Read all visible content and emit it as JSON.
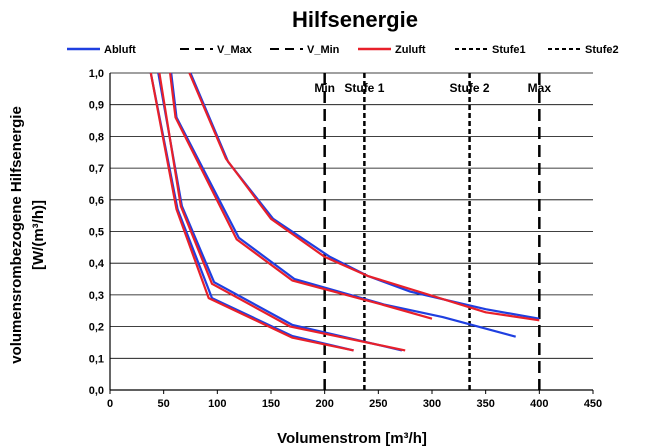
{
  "chart_data": {
    "type": "line",
    "title": "Hilfsenergie",
    "xlabel": "Volumenstrom [m³/h]",
    "ylabel": [
      "volumensrombezogene Hilfsenergie",
      "[W/(m³/h)]"
    ],
    "xlim": [
      0,
      450
    ],
    "ylim": [
      0,
      1.0
    ],
    "xticks": [
      "0",
      "50",
      "100",
      "150",
      "200",
      "250",
      "300",
      "350",
      "400",
      "450"
    ],
    "yticks": [
      "0,0",
      "0,1",
      "0,2",
      "0,3",
      "0,4",
      "0,5",
      "0,6",
      "0,7",
      "0,8",
      "0,9",
      "1,0"
    ],
    "grid": "horizontal",
    "legend_position": "top",
    "legend": [
      {
        "label": "Abluft",
        "color": "#1f3fe0",
        "style": "solid"
      },
      {
        "label": "V_Max",
        "color": "#000000",
        "style": "longdash"
      },
      {
        "label": "V_Min",
        "color": "#000000",
        "style": "longdash"
      },
      {
        "label": "Zuluft",
        "color": "#e8202a",
        "style": "solid"
      },
      {
        "label": "Stufe1",
        "color": "#000000",
        "style": "shortdash"
      },
      {
        "label": "Stufe2",
        "color": "#000000",
        "style": "shortdash"
      }
    ],
    "vertical_lines": [
      {
        "x": 200,
        "label": "Min",
        "style": "longdash"
      },
      {
        "x": 237,
        "label": "Stufe 1",
        "style": "shortdash"
      },
      {
        "x": 335,
        "label": "Stufe 2",
        "style": "shortdash"
      },
      {
        "x": 400,
        "label": "Max",
        "style": "longdash"
      }
    ],
    "series": [
      {
        "name": "Abluft",
        "color": "#1f3fe0",
        "curves": [
          [
            [
              38,
              1.0
            ],
            [
              63,
              0.57
            ],
            [
              95,
              0.29
            ],
            [
              170,
              0.17
            ],
            [
              227,
              0.125
            ]
          ],
          [
            [
              45,
              1.0
            ],
            [
              67,
              0.58
            ],
            [
              97,
              0.34
            ],
            [
              170,
              0.205
            ],
            [
              272,
              0.125
            ]
          ],
          [
            [
              57,
              1.0
            ],
            [
              62,
              0.86
            ],
            [
              120,
              0.48
            ],
            [
              172,
              0.35
            ],
            [
              255,
              0.27
            ],
            [
              310,
              0.23
            ],
            [
              378,
              0.168
            ]
          ],
          [
            [
              75,
              1.0
            ],
            [
              110,
              0.72
            ],
            [
              152,
              0.54
            ],
            [
              205,
              0.42
            ],
            [
              240,
              0.36
            ],
            [
              280,
              0.31
            ],
            [
              350,
              0.255
            ],
            [
              400,
              0.225
            ]
          ]
        ]
      },
      {
        "name": "Zuluft",
        "color": "#e8202a",
        "curves": [
          [
            [
              38,
              1.0
            ],
            [
              62,
              0.57
            ],
            [
              92,
              0.29
            ],
            [
              170,
              0.165
            ],
            [
              227,
              0.125
            ]
          ],
          [
            [
              46,
              1.0
            ],
            [
              66,
              0.58
            ],
            [
              95,
              0.335
            ],
            [
              168,
              0.2
            ],
            [
              275,
              0.125
            ]
          ],
          [
            [
              56,
              1.0
            ],
            [
              61,
              0.86
            ],
            [
              118,
              0.475
            ],
            [
              170,
              0.345
            ],
            [
              255,
              0.268
            ],
            [
              300,
              0.225
            ]
          ],
          [
            [
              74,
              1.0
            ],
            [
              108,
              0.73
            ],
            [
              150,
              0.54
            ],
            [
              200,
              0.42
            ],
            [
              240,
              0.36
            ],
            [
              350,
              0.245
            ],
            [
              400,
              0.22
            ]
          ]
        ]
      }
    ]
  }
}
